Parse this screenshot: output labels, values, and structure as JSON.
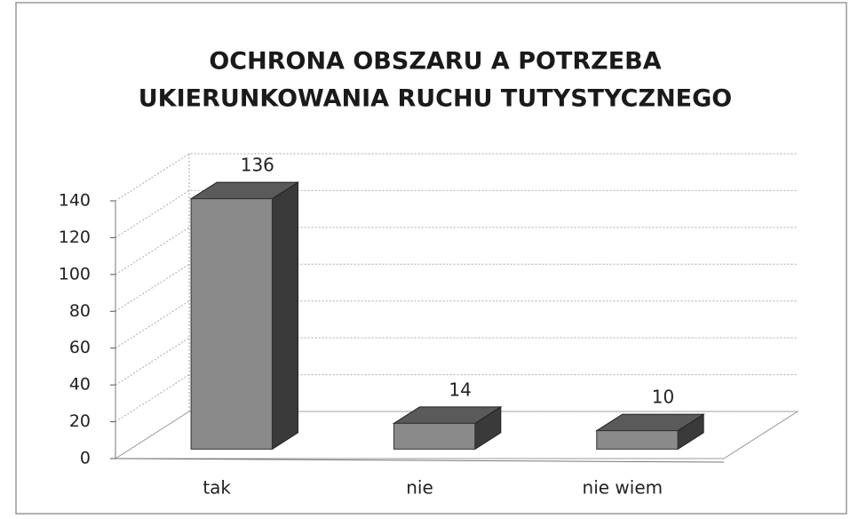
{
  "chart_data": {
    "type": "bar",
    "title": [
      "OCHRONA OBSZARU A POTRZEBA",
      "UKIERUNKOWANIA RUCHU TUTYSTYCZNEGO"
    ],
    "categories": [
      "tak",
      "nie",
      "nie wiem"
    ],
    "values": [
      136,
      14,
      10
    ],
    "color": "#8a8a8a",
    "ylim": [
      0,
      140
    ],
    "yticks": [
      0,
      20,
      40,
      60,
      80,
      100,
      120,
      140
    ],
    "grid": true
  }
}
